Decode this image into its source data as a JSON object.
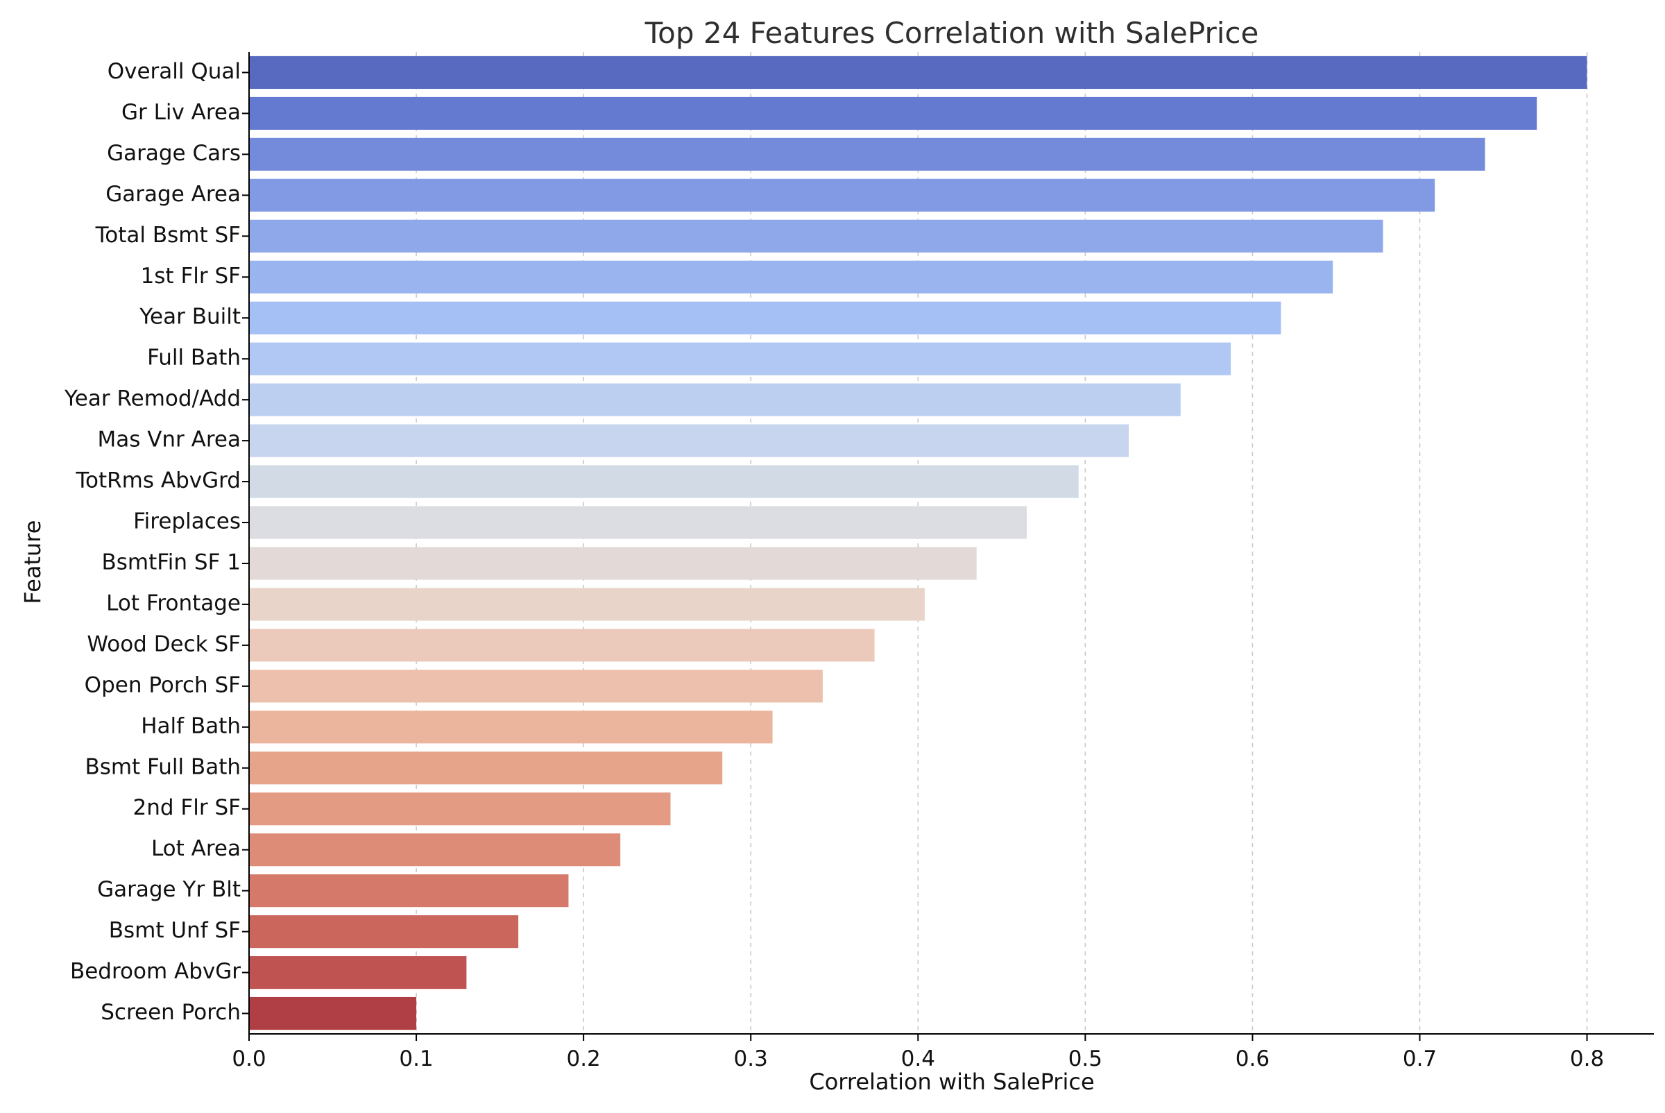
{
  "chart_data": {
    "type": "bar",
    "orientation": "horizontal",
    "title": "Top 24 Features Correlation with SalePrice",
    "xlabel": "Correlation with SalePrice",
    "ylabel": "Feature",
    "xlim": [
      0,
      0.84
    ],
    "xticks": [
      "0.0",
      "0.1",
      "0.2",
      "0.3",
      "0.4",
      "0.5",
      "0.6",
      "0.7",
      "0.8"
    ],
    "grid": "vertical dashed",
    "categories": [
      "Overall Qual",
      "Gr Liv Area",
      "Garage Cars",
      "Garage Area",
      "Total Bsmt SF",
      "1st Flr SF",
      "Year Built",
      "Full Bath",
      "Year Remod/Add",
      "Mas Vnr Area",
      "TotRms AbvGrd",
      "Fireplaces",
      "BsmtFin SF 1",
      "Lot Frontage",
      "Wood Deck SF",
      "Open Porch SF",
      "Half Bath",
      "Bsmt Full Bath",
      "2nd Flr SF",
      "Lot Area",
      "Garage Yr Blt",
      "Bsmt Unf SF",
      "Bedroom AbvGr",
      "Screen Porch"
    ],
    "values": [
      0.8,
      0.77,
      0.739,
      0.709,
      0.678,
      0.648,
      0.617,
      0.587,
      0.557,
      0.526,
      0.496,
      0.465,
      0.435,
      0.404,
      0.374,
      0.343,
      0.313,
      0.283,
      0.252,
      0.222,
      0.191,
      0.161,
      0.13,
      0.1
    ],
    "colors": [
      "#5869c0",
      "#6479d0",
      "#738bda",
      "#829ae4",
      "#8ea8ea",
      "#99b4ef",
      "#a5c0f4",
      "#b0c8f3",
      "#bccff1",
      "#c8d5ef",
      "#d2dae6",
      "#dbdde2",
      "#e3d9d7",
      "#e8d4c9",
      "#eccabb",
      "#ecc0ac",
      "#ebb49c",
      "#e6a58b",
      "#e39b84",
      "#dd8c77",
      "#d57a6b",
      "#ca665c",
      "#be5351",
      "#b03f45"
    ]
  }
}
